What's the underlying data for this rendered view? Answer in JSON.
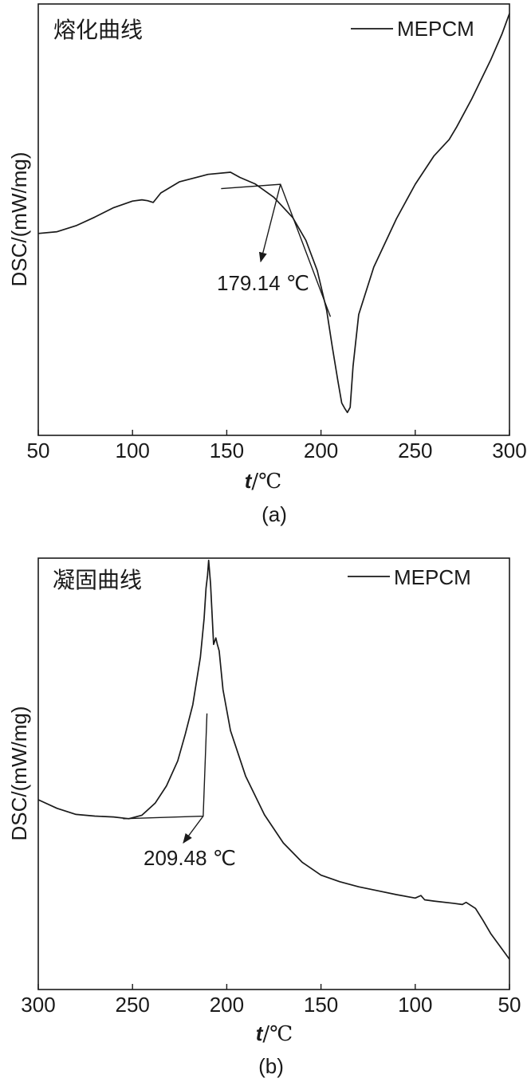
{
  "chart_data": [
    {
      "panel": "(a)",
      "type": "line",
      "title": "熔化曲线",
      "xlabel_var": "t",
      "xlabel_unit": "/℃",
      "ylabel": "DSC/(mW/mg)",
      "xlim": [
        50,
        300
      ],
      "x_reversed": false,
      "ylim": [
        0,
        100
      ],
      "xticks": [
        50,
        100,
        150,
        200,
        250,
        300
      ],
      "legend": "top-right",
      "series": [
        {
          "name": "MEPCM",
          "x": [
            50,
            60,
            70,
            80,
            90,
            100,
            105,
            108,
            111,
            115,
            125,
            140,
            152,
            157,
            165,
            175,
            185,
            192,
            198,
            203,
            206,
            209,
            211,
            212.5,
            214,
            215.5,
            217,
            220,
            228,
            240,
            250,
            260,
            268,
            272,
            280,
            290,
            296,
            300
          ],
          "y": [
            46.8,
            47.2,
            48.6,
            50.6,
            52.8,
            54.3,
            54.6,
            54.4,
            54.0,
            56.2,
            58.8,
            60.5,
            61.0,
            59.8,
            58.3,
            55.2,
            50.5,
            45.2,
            38.2,
            29.0,
            20.5,
            12.5,
            7.5,
            6.3,
            5.3,
            6.5,
            16.0,
            28.0,
            39.0,
            50.2,
            58.2,
            64.8,
            68.6,
            71.5,
            78.0,
            87.0,
            93.0,
            97.8
          ]
        }
      ],
      "annotations": [
        {
          "label": "179.14 ℃",
          "tangent_intersect": [
            178.5,
            58.2
          ]
        }
      ],
      "panel_label": "(a)"
    },
    {
      "panel": "(b)",
      "type": "line",
      "title": "凝固曲线",
      "xlabel_var": "t",
      "xlabel_unit": "/℃",
      "ylabel": "DSC/(mW/mg)",
      "xlim": [
        300,
        50
      ],
      "x_reversed": true,
      "ylim": [
        0,
        100
      ],
      "xticks": [
        300,
        250,
        200,
        150,
        100,
        50
      ],
      "legend": "top-right",
      "series": [
        {
          "name": "MEPCM",
          "x": [
            300,
            290,
            280,
            270,
            260,
            252,
            245,
            238,
            232,
            226,
            222,
            218,
            214,
            212,
            211,
            210.2,
            209.6,
            208.6,
            207,
            205.8,
            205,
            204,
            202,
            198,
            190,
            180,
            170,
            160,
            150,
            140,
            130,
            120,
            110,
            100,
            97,
            95,
            90,
            80,
            75,
            73,
            68,
            64,
            60,
            55,
            50
          ],
          "y": [
            44.0,
            42.0,
            40.6,
            40.2,
            40.0,
            39.6,
            40.4,
            43.2,
            47.2,
            53.0,
            59.2,
            66.0,
            77.0,
            86.0,
            93.0,
            96.0,
            99.5,
            94.0,
            80.0,
            81.5,
            80.0,
            78.5,
            69.5,
            60.0,
            49.5,
            40.5,
            34.0,
            29.5,
            26.5,
            25.0,
            23.8,
            22.9,
            22.0,
            21.2,
            21.8,
            20.8,
            20.5,
            20.0,
            19.7,
            20.2,
            18.8,
            16.0,
            13.0,
            10.0,
            7.0
          ]
        }
      ],
      "annotations": [
        {
          "label": "209.48 ℃",
          "tangent_intersect": [
            212.5,
            40.2
          ]
        }
      ],
      "panel_label": "(b)"
    }
  ]
}
